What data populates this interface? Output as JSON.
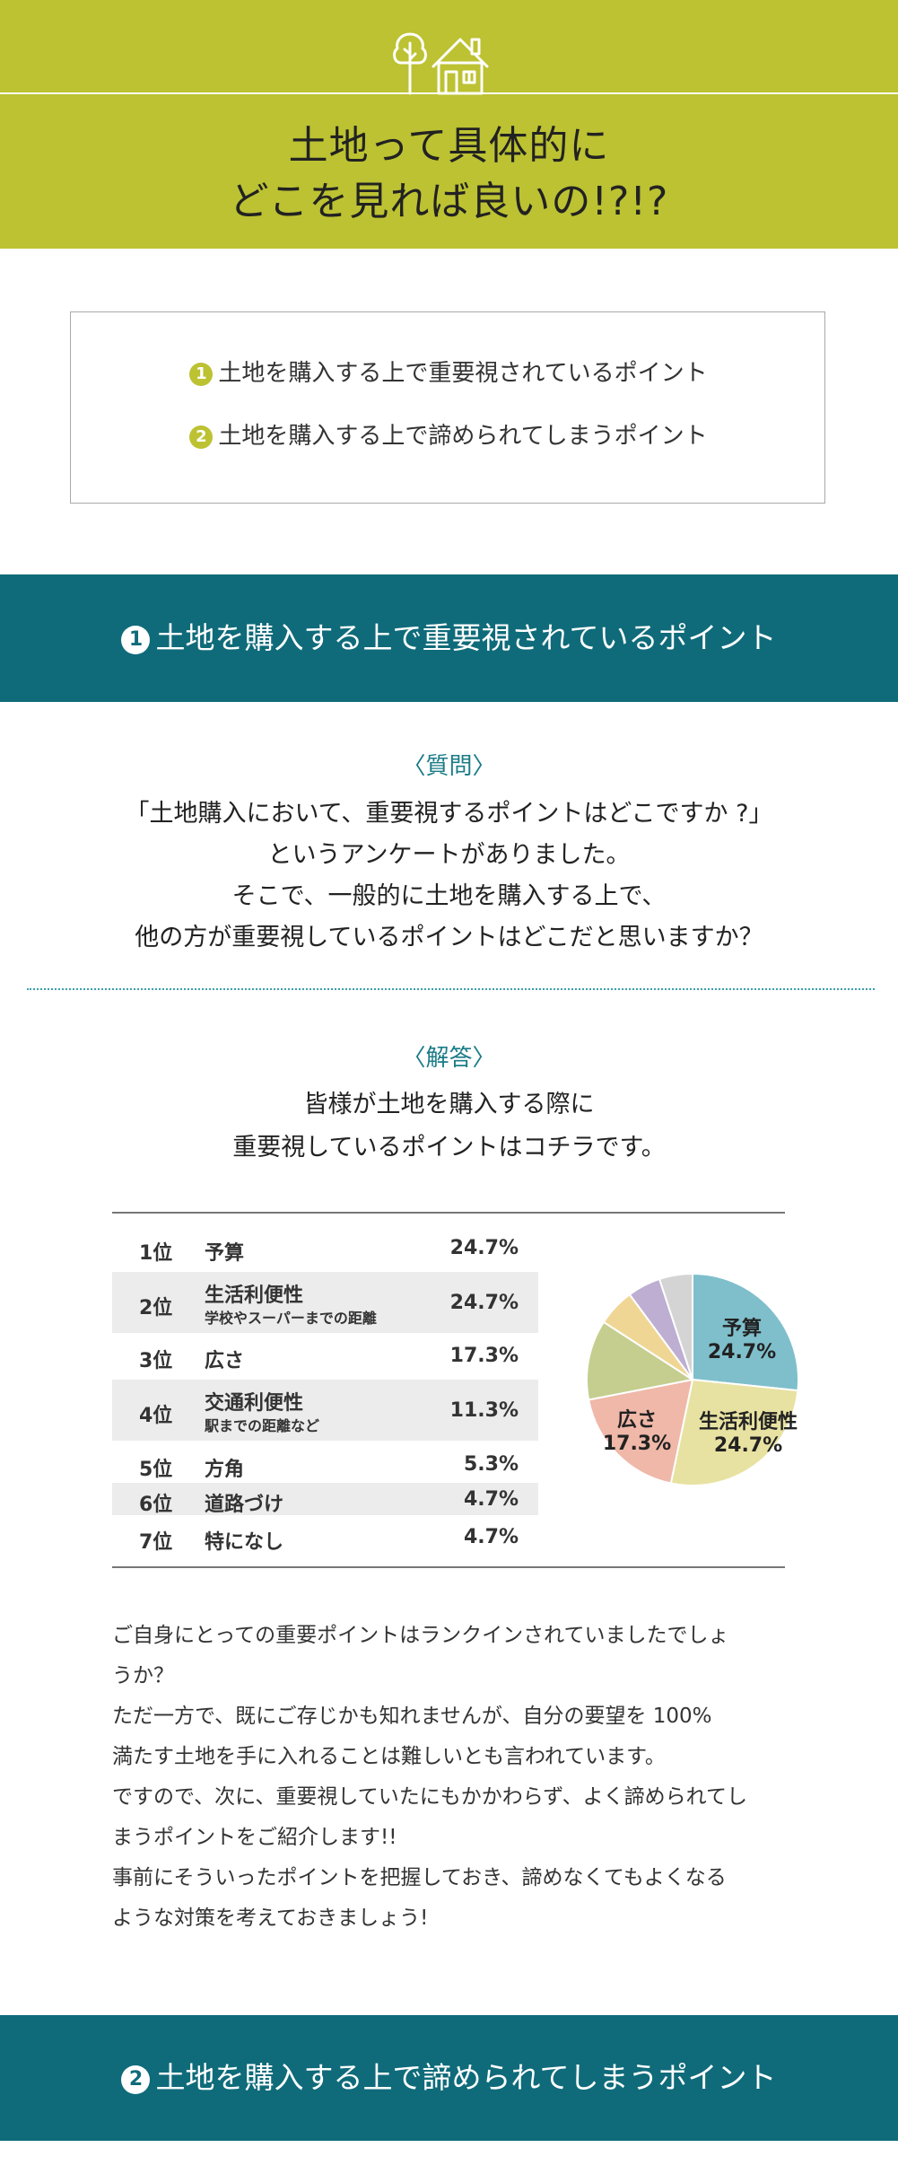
{
  "header": {
    "title_line1": "土地って具体的に",
    "title_line2": "どこを見れば良いの!?!?",
    "icon": "house-and-tree-icon"
  },
  "toc": {
    "items": [
      {
        "num": "1",
        "label": "土地を購入する上で重要視されているポイント"
      },
      {
        "num": "2",
        "label": "土地を購入する上で諦められてしまうポイント"
      }
    ]
  },
  "section1": {
    "num": "1",
    "title": "土地を購入する上で重要視されているポイント",
    "question_heading": "〈質問〉",
    "question_lines": [
      "「土地購入において、重要視するポイントはどこですか ?」",
      "というアンケートがありました。",
      "そこで、一般的に土地を購入する上で、",
      "他の方が重要視しているポイントはどこだと思いますか？"
    ],
    "answer_heading": "〈解答〉",
    "answer_lines": [
      "皆様が土地を購入する際に",
      "重要視しているポイントはコチラです。"
    ]
  },
  "ranking": [
    {
      "rank": "1位",
      "label": "予算",
      "sub": "",
      "pct": "24.7%"
    },
    {
      "rank": "2位",
      "label": "生活利便性",
      "sub": "学校やスーパーまでの距離",
      "pct": "24.7%"
    },
    {
      "rank": "3位",
      "label": "広さ",
      "sub": "",
      "pct": "17.3%"
    },
    {
      "rank": "4位",
      "label": "交通利便性",
      "sub": "駅までの距離など",
      "pct": "11.3%"
    },
    {
      "rank": "5位",
      "label": "方角",
      "sub": "",
      "pct": "5.3%"
    },
    {
      "rank": "6位",
      "label": "道路づけ",
      "sub": "",
      "pct": "4.7%"
    },
    {
      "rank": "7位",
      "label": "特になし",
      "sub": "",
      "pct": "4.7%"
    }
  ],
  "chart_data": {
    "type": "pie",
    "categories": [
      "予算",
      "生活利便性",
      "広さ",
      "交通利便性",
      "方角",
      "道路づけ",
      "特になし"
    ],
    "values": [
      24.7,
      24.7,
      17.3,
      11.3,
      5.3,
      4.7,
      4.7
    ],
    "colors": [
      "#7fbfcb",
      "#e8e2a2",
      "#efb8a8",
      "#c5ce8f",
      "#f0d694",
      "#bdaed2",
      "#d4d4d4"
    ],
    "labels": [
      {
        "name": "予算",
        "pct": "24.7%"
      },
      {
        "name": "生活利便性",
        "pct": "24.7%"
      },
      {
        "name": "広さ",
        "pct": "17.3%"
      }
    ]
  },
  "paragraph_lines": [
    "ご自身にとっての重要ポイントはランクインされていましたでしょ",
    "うか？",
    "ただ一方で、既にご存じかも知れませんが、自分の要望を 100%",
    "満たす土地を手に入れることは難しいとも言われています。",
    "ですので、次に、重要視していたにもかかわらず、よく諦められてし",
    "まうポイントをご紹介します!!",
    "事前にそういったポイントを把握しておき、諦めなくてもよくなる",
    "ような対策を考えておきましょう!"
  ],
  "section2": {
    "num": "2",
    "title": "土地を購入する上で諦められてしまうポイント"
  }
}
